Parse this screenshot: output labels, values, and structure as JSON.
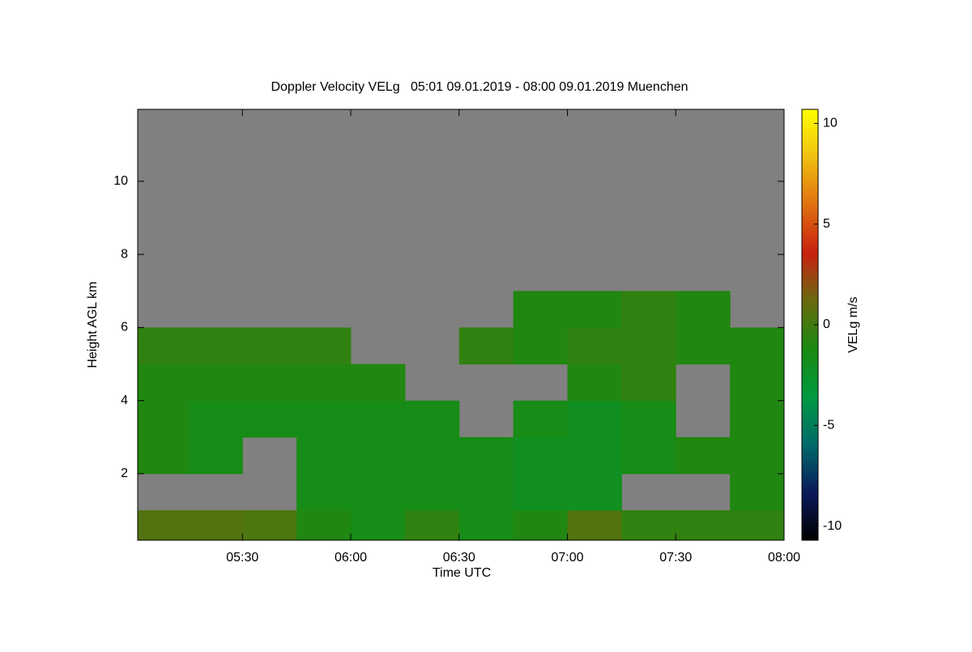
{
  "chart_data": {
    "type": "heatmap",
    "title": "Doppler Velocity VELg   05:01 09.01.2019 - 08:00 09.01.2019 Muenchen",
    "x_label": "Time UTC",
    "y_label": "Height AGL km",
    "colorbar_label": "VELg m/s",
    "xlim": [
      301,
      480
    ],
    "xticks": [
      {
        "value": 330,
        "label": "05:30"
      },
      {
        "value": 360,
        "label": "06:00"
      },
      {
        "value": 390,
        "label": "06:30"
      },
      {
        "value": 420,
        "label": "07:00"
      },
      {
        "value": 450,
        "label": "07:30"
      },
      {
        "value": 480,
        "label": "08:00"
      }
    ],
    "ylim": [
      0.18,
      11.97
    ],
    "yticks": [
      2,
      4,
      6,
      8,
      10
    ],
    "zlim": [
      -10.7,
      10.7
    ],
    "zticks": [
      -10,
      -5,
      0,
      5,
      10
    ],
    "background": "#808080",
    "colormap": [
      "#000000",
      "#0a1a5a",
      "#006a6a",
      "#009a40",
      "#1a8a10",
      "#6a6a10",
      "#c82010",
      "#e07010",
      "#f0c010",
      "#ffff00"
    ],
    "x_edges": [
      301,
      315,
      330,
      345,
      360,
      375,
      390,
      405,
      420,
      435,
      450,
      465,
      480
    ],
    "y_edges": [
      0.18,
      1,
      2,
      3,
      4,
      5,
      6,
      7
    ],
    "z": [
      [
        0.5,
        0.5,
        0.3,
        -1,
        -1.5,
        -0.5,
        -1.5,
        -1,
        0.5,
        -0.5,
        -0.5,
        -0.5
      ],
      [
        null,
        null,
        null,
        -1.5,
        -1.5,
        -1.5,
        -1.5,
        -2,
        -2,
        null,
        null,
        -1
      ],
      [
        -1,
        -1.5,
        null,
        -1.5,
        -1.5,
        -1.5,
        -1.5,
        -2,
        -2,
        -1.5,
        -1,
        -1
      ],
      [
        -1,
        -1.5,
        -1.5,
        -1.5,
        -1.5,
        -1.5,
        null,
        -1.5,
        -2,
        -1.5,
        null,
        -1
      ],
      [
        -1,
        -1,
        -1,
        -1,
        -1,
        null,
        null,
        null,
        -1,
        -0.5,
        null,
        -1
      ],
      [
        -0.5,
        -0.5,
        -0.5,
        -0.5,
        null,
        null,
        -0.5,
        -1,
        -0.5,
        -0.5,
        -1,
        -1
      ],
      [
        null,
        null,
        null,
        null,
        null,
        null,
        null,
        -1,
        -1,
        -0.5,
        -1,
        null
      ]
    ]
  }
}
